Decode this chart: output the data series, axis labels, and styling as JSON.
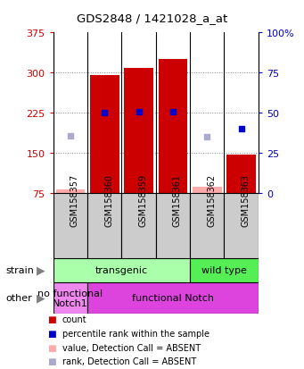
{
  "title": "GDS2848 / 1421028_a_at",
  "samples": [
    "GSM158357",
    "GSM158360",
    "GSM158359",
    "GSM158361",
    "GSM158362",
    "GSM158363"
  ],
  "count_values": [
    null,
    295,
    308,
    325,
    null,
    147
  ],
  "count_absent_values": [
    83,
    null,
    null,
    null,
    88,
    null
  ],
  "percentile_values": [
    null,
    50,
    51,
    51,
    null,
    40
  ],
  "percentile_absent_values": [
    36,
    null,
    null,
    null,
    35,
    null
  ],
  "ylim_left": [
    75,
    375
  ],
  "ylim_right": [
    0,
    100
  ],
  "yticks_left": [
    75,
    150,
    225,
    300,
    375
  ],
  "yticks_right": [
    0,
    25,
    50,
    75,
    100
  ],
  "bar_color": "#cc0000",
  "bar_absent_color": "#ffaaaa",
  "dot_color": "#0000cc",
  "dot_absent_color": "#aaaacc",
  "strain_labels": [
    [
      "transgenic",
      0,
      4
    ],
    [
      "wild type",
      4,
      6
    ]
  ],
  "strain_colors": [
    "#aaffaa",
    "#55ee55"
  ],
  "other_labels": [
    [
      "no functional\nNotch1",
      0,
      1
    ],
    [
      "functional Notch",
      1,
      6
    ]
  ],
  "other_colors": [
    "#ee88ee",
    "#dd44dd"
  ],
  "grid_color": "#888888",
  "bg_color": "#ffffff",
  "plot_bg_color": "#ffffff",
  "tick_color_left": "#cc0000",
  "tick_color_right": "#0000cc",
  "xlabel_bg_color": "#cccccc"
}
